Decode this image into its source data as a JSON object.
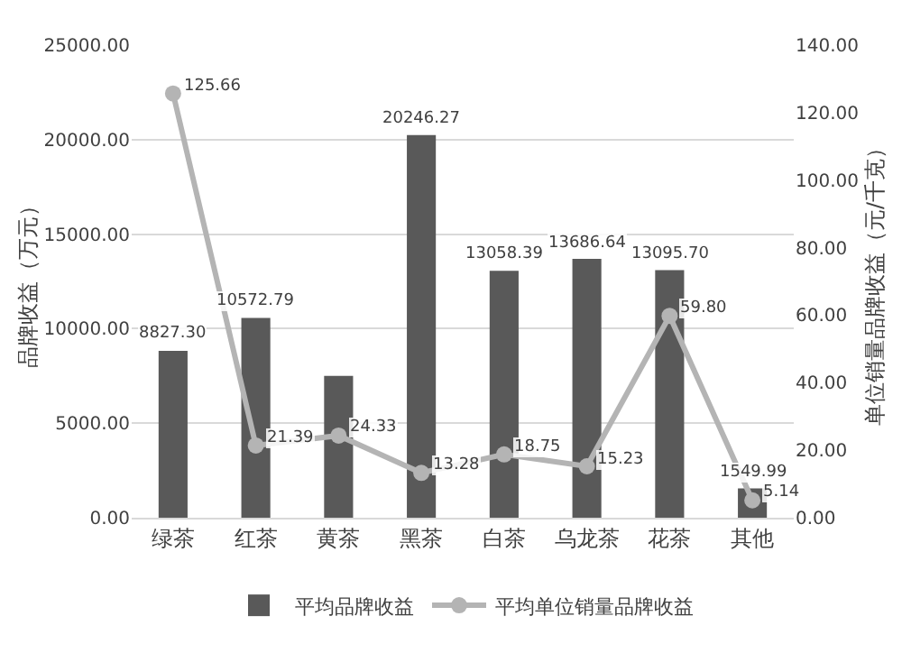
{
  "chart_data": {
    "type": "bar",
    "ylabel": "品牌收益（万元）",
    "y2label": "单位销量品牌收益（元/千克）",
    "categories": [
      "绿茶",
      "红茶",
      "黄茶",
      "黑茶",
      "白茶",
      "乌龙茶",
      "花茶",
      "其他"
    ],
    "series": [
      {
        "name": "平均品牌收益",
        "color": "#595959",
        "values": [
          8827.3,
          10572.79,
          7500,
          20246.27,
          13058.39,
          13686.64,
          13095.7,
          1549.99
        ],
        "value_labels": [
          "8827.30",
          "10572.79",
          null,
          "20246.27",
          "13058.39",
          "13686.64",
          "13095.70",
          "1549.99"
        ]
      },
      {
        "name": "平均单位销量品牌收益",
        "type": "line",
        "axis": "y2",
        "color": "#b4b4b4",
        "marker": "circle",
        "values": [
          125.66,
          21.39,
          24.33,
          13.28,
          18.75,
          15.23,
          59.8,
          5.14
        ],
        "value_labels": [
          "125.66",
          "21.39",
          "24.33",
          "13.28",
          "18.75",
          "15.23",
          "59.80",
          "5.14"
        ]
      }
    ],
    "ylim": [
      0,
      25000
    ],
    "yticks": [
      {
        "value": 0,
        "label": "0.00"
      },
      {
        "value": 5000,
        "label": "5000.00"
      },
      {
        "value": 10000,
        "label": "10000.00"
      },
      {
        "value": 15000,
        "label": "15000.00"
      },
      {
        "value": 20000,
        "label": "20000.00"
      },
      {
        "value": 25000,
        "label": "25000.00"
      }
    ],
    "y2lim": [
      0,
      140
    ],
    "y2ticks": [
      {
        "value": 0,
        "label": "0.00"
      },
      {
        "value": 20,
        "label": "20.00"
      },
      {
        "value": 40,
        "label": "40.00"
      },
      {
        "value": 60,
        "label": "60.00"
      },
      {
        "value": 80,
        "label": "80.00"
      },
      {
        "value": 100,
        "label": "100.00"
      },
      {
        "value": 120,
        "label": "120.00"
      },
      {
        "value": 140,
        "label": "140.00"
      }
    ],
    "grid": "y",
    "legend": "bottom"
  }
}
